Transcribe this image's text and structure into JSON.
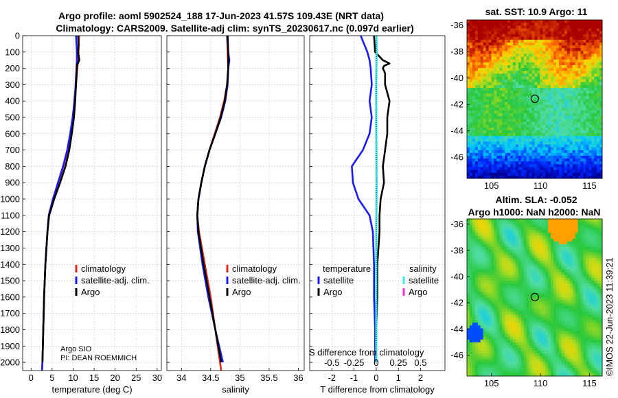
{
  "header": {
    "title_line1": "Argo profile: aoml 5902524_188 17-Jun-2023 41.57S 109.43E (NRT data)",
    "title_line2": "Climatology: CARS2009. Satellite-adj clim: synTS_20230617.nc (0.097d earlier)"
  },
  "watermark": "©IMOS 22-Jun-2023 11:39:21",
  "credit": {
    "line1": "Argo SIO",
    "line2": "PI: DEAN ROEMMICH"
  },
  "colors": {
    "climatology": "#e8241d",
    "satellite": "#1a1aff",
    "argo": "#000000",
    "sal_satellite": "#3ee8e8",
    "sal_argo": "#ff33cc"
  },
  "chart_data": [
    {
      "type": "line",
      "id": "temperature",
      "xlabel": "temperature (deg C)",
      "ylabel": "",
      "xlim": [
        -2,
        31
      ],
      "ylim": [
        2050,
        0
      ],
      "xticks": [
        "0",
        "5",
        "10",
        "15",
        "20",
        "25",
        "30"
      ],
      "xtick_values": [
        0,
        5,
        10,
        15,
        20,
        25,
        30
      ],
      "yticks": [
        "0",
        "100",
        "200",
        "300",
        "400",
        "500",
        "600",
        "700",
        "800",
        "900",
        "1000",
        "1100",
        "1200",
        "1300",
        "1400",
        "1500",
        "1600",
        "1700",
        "1800",
        "1900",
        "2000"
      ],
      "ytick_values": [
        0,
        100,
        200,
        300,
        400,
        500,
        600,
        700,
        800,
        900,
        1000,
        1100,
        1200,
        1300,
        1400,
        1500,
        1600,
        1700,
        1800,
        1900,
        2000
      ],
      "legend": [
        "climatology",
        "satellite-adj. clim.",
        "Argo"
      ],
      "series": [
        {
          "name": "climatology",
          "color": "#e8241d",
          "depth": [
            0,
            50,
            100,
            150,
            200,
            300,
            400,
            500,
            600,
            700,
            800,
            900,
            1000,
            1100,
            1200,
            1400,
            1600,
            1800,
            2000,
            2050
          ],
          "values": [
            11.4,
            11.35,
            11.3,
            11.2,
            11.0,
            10.7,
            10.4,
            10.0,
            9.4,
            8.7,
            7.7,
            6.5,
            5.2,
            4.2,
            3.9,
            3.4,
            3.1,
            2.9,
            2.7,
            2.6
          ]
        },
        {
          "name": "satellite-adj. clim.",
          "color": "#1a1aff",
          "depth": [
            0,
            50,
            100,
            150,
            200,
            300,
            400,
            500,
            600,
            700,
            800,
            900,
            1000,
            1100,
            1200,
            1400,
            1600,
            1800,
            2000,
            2050
          ],
          "values": [
            10.7,
            10.8,
            10.9,
            10.9,
            10.8,
            10.6,
            10.3,
            9.9,
            9.3,
            8.6,
            7.6,
            6.4,
            5.2,
            4.2,
            3.9,
            3.4,
            3.1,
            2.9,
            2.7,
            2.6
          ]
        },
        {
          "name": "Argo",
          "color": "#000000",
          "depth": [
            0,
            50,
            100,
            150,
            180,
            200,
            300,
            400,
            500,
            600,
            700,
            800,
            900,
            1000,
            1100,
            1200,
            1400,
            1600,
            1800,
            2000
          ],
          "values": [
            11.2,
            11.3,
            11.2,
            11.5,
            10.9,
            10.9,
            10.7,
            10.5,
            10.2,
            9.7,
            9.1,
            8.2,
            6.9,
            5.5,
            4.3,
            3.9,
            3.4,
            3.1,
            2.9,
            2.7
          ]
        }
      ]
    },
    {
      "type": "line",
      "id": "salinity",
      "xlabel": "salinity",
      "xlim": [
        33.75,
        36.1
      ],
      "ylim": [
        2050,
        0
      ],
      "xticks": [
        "34",
        "34.5",
        "35",
        "35.5",
        "36"
      ],
      "xtick_values": [
        34,
        34.5,
        35,
        35.5,
        36
      ],
      "legend": [
        "climatology",
        "satellite-adj. clim.",
        "Argo"
      ],
      "series": [
        {
          "name": "climatology",
          "color": "#e8241d",
          "depth": [
            0,
            100,
            200,
            300,
            400,
            500,
            600,
            700,
            800,
            900,
            1000,
            1100,
            1200,
            1400,
            1600,
            1800,
            2000,
            2050
          ],
          "values": [
            34.78,
            34.79,
            34.8,
            34.78,
            34.73,
            34.66,
            34.57,
            34.48,
            34.4,
            34.34,
            34.29,
            34.27,
            34.3,
            34.4,
            34.5,
            34.58,
            34.66,
            34.68
          ]
        },
        {
          "name": "satellite-adj. clim.",
          "color": "#1a1aff",
          "depth": [
            0,
            100,
            150,
            200,
            300,
            400,
            500,
            600,
            700,
            800,
            900,
            1000,
            1100,
            1200,
            1400,
            1600,
            1800,
            2000
          ],
          "values": [
            34.78,
            34.8,
            34.82,
            34.8,
            34.79,
            34.75,
            34.68,
            34.58,
            34.48,
            34.4,
            34.34,
            34.29,
            34.27,
            34.28,
            34.36,
            34.46,
            34.58,
            34.71
          ]
        },
        {
          "name": "Argo",
          "color": "#000000",
          "depth": [
            0,
            100,
            200,
            300,
            400,
            500,
            600,
            700,
            800,
            900,
            1000,
            1100,
            1200,
            1400,
            1600,
            1800,
            2000
          ],
          "values": [
            34.79,
            34.8,
            34.8,
            34.78,
            34.74,
            34.67,
            34.58,
            34.48,
            34.4,
            34.34,
            34.29,
            34.27,
            34.29,
            34.38,
            34.48,
            34.58,
            34.68
          ]
        }
      ]
    },
    {
      "type": "line",
      "id": "difference",
      "xlabel": "T difference from climatology",
      "xlim": [
        -3,
        3.1
      ],
      "ylim": [
        2050,
        0
      ],
      "xticks": [
        "-2",
        "-1",
        "0",
        "1",
        "2"
      ],
      "xtick_values": [
        -2,
        -1,
        0,
        1,
        2
      ],
      "top_axis_label": "S difference from climatology",
      "top_ticks": [
        "-0.5",
        "-0.25",
        "0",
        "0.25",
        "0.5"
      ],
      "top_tick_values": [
        -0.5,
        -0.25,
        0,
        0.25,
        0.5
      ],
      "legend_temperature_title": "temperature",
      "legend_salinity_title": "salinity",
      "legend_temperature": [
        "satellite",
        "Argo"
      ],
      "legend_salinity": [
        "satellite",
        "Argo"
      ],
      "series": [
        {
          "name": "T satellite",
          "color": "#1a1aff",
          "depth": [
            0,
            50,
            100,
            150,
            200,
            300,
            400,
            500,
            600,
            700,
            800,
            900,
            1000,
            1100,
            1200,
            1400,
            1600,
            1800,
            2000
          ],
          "values": [
            -0.7,
            -0.55,
            -0.4,
            -0.3,
            -0.25,
            -0.2,
            -0.3,
            -0.2,
            -0.3,
            -0.6,
            -1.1,
            -1.05,
            -0.8,
            -0.3,
            -0.15,
            -0.1,
            -0.1,
            -0.05,
            -0.05
          ]
        },
        {
          "name": "T Argo",
          "color": "#000000",
          "depth": [
            0,
            100,
            150,
            170,
            185,
            200,
            230,
            300,
            400,
            500,
            600,
            700,
            800,
            900,
            1000,
            1100,
            1200,
            1400,
            1600,
            1800,
            2000
          ],
          "values": [
            -0.1,
            -0.05,
            0.3,
            0.6,
            0.35,
            0.3,
            0.4,
            0.4,
            0.6,
            0.5,
            0.5,
            0.4,
            0.3,
            0.35,
            0.2,
            0.15,
            0.15,
            0.05,
            0.05,
            0.0,
            0.0
          ]
        },
        {
          "name": "S satellite",
          "color": "#3ee8e8",
          "depth": [
            0,
            100,
            200,
            300,
            500,
            700,
            900,
            1100,
            1300,
            1500,
            1700,
            1900,
            2000
          ],
          "values": [
            0.01,
            0.02,
            0.01,
            0.0,
            0.0,
            0.01,
            0.02,
            0.01,
            0.0,
            0.0,
            0.0,
            0.0,
            0.0
          ]
        }
      ]
    },
    {
      "type": "heatmap",
      "id": "sst_map",
      "title": "sat. SST: 10.9 Argo: 11",
      "xlim": [
        102.5,
        116.3
      ],
      "ylim": [
        -47.6,
        -35.6
      ],
      "xticks": [
        "105",
        "110",
        "115"
      ],
      "xtick_values": [
        105,
        110,
        115
      ],
      "yticks": [
        "-36",
        "-38",
        "-40",
        "-42",
        "-44",
        "-46"
      ],
      "ytick_values": [
        -36,
        -38,
        -40,
        -42,
        -44,
        -46
      ],
      "marker": {
        "lon": 109.43,
        "lat": -41.57
      }
    },
    {
      "type": "heatmap",
      "id": "sla_map",
      "title_line1": "Altim. SLA: -0.052",
      "title_line2": "Argo h1000: NaN h2000: NaN",
      "xlim": [
        102.5,
        116.3
      ],
      "ylim": [
        -47.6,
        -35.6
      ],
      "xticks": [
        "105",
        "110",
        "115"
      ],
      "xtick_values": [
        105,
        110,
        115
      ],
      "yticks": [
        "-36",
        "-38",
        "-40",
        "-42",
        "-44",
        "-46"
      ],
      "ytick_values": [
        -36,
        -38,
        -40,
        -42,
        -44,
        -46
      ],
      "marker": {
        "lon": 109.43,
        "lat": -41.57
      }
    }
  ]
}
